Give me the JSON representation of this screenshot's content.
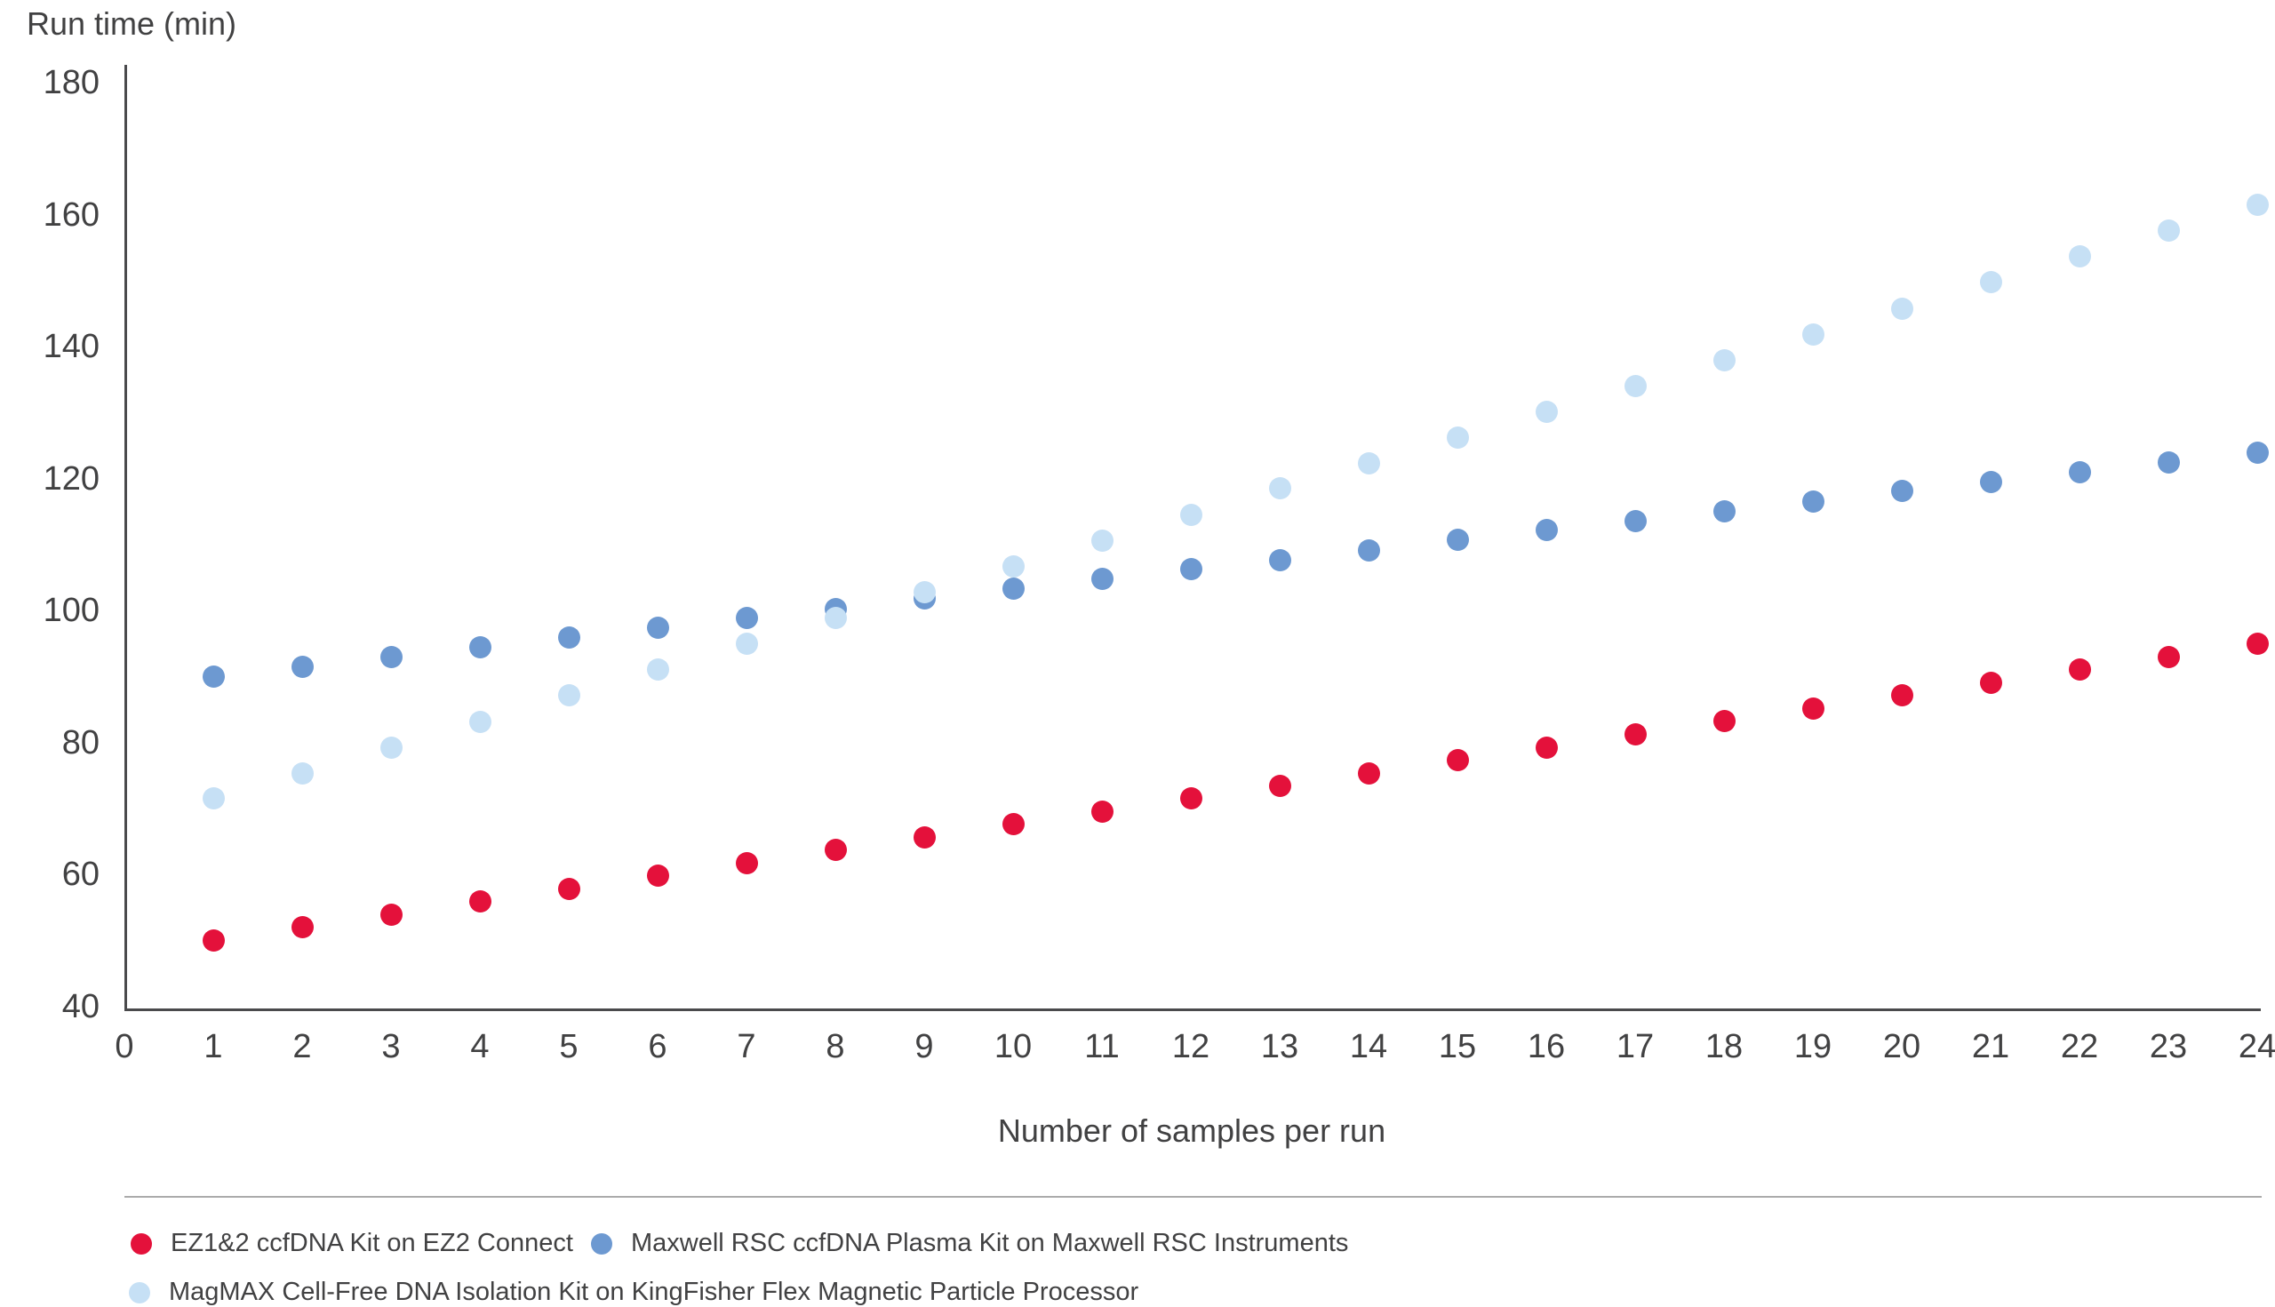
{
  "chart_data": {
    "type": "scatter",
    "title": "",
    "ylabel": "Run time (min)",
    "xlabel": "Number of samples per run",
    "x": [
      1,
      2,
      3,
      4,
      5,
      6,
      7,
      8,
      9,
      10,
      11,
      12,
      13,
      14,
      15,
      16,
      17,
      18,
      19,
      20,
      21,
      22,
      23,
      24
    ],
    "series": [
      {
        "name": "EZ1&2 ccfDNA Kit on EZ2 Connect",
        "color": "#e4113b",
        "values": [
          50.0,
          52.0,
          53.9,
          55.9,
          57.8,
          59.8,
          61.7,
          63.7,
          65.7,
          67.6,
          69.6,
          71.5,
          73.5,
          75.4,
          77.4,
          79.3,
          81.3,
          83.3,
          85.2,
          87.2,
          89.1,
          91.1,
          93.0,
          95.0
        ]
      },
      {
        "name": "Maxwell RSC ccfDNA Plasma Kit on Maxwell RSC Instruments",
        "color": "#6d99d1",
        "values": [
          90.0,
          91.5,
          93.0,
          94.4,
          95.9,
          97.4,
          98.9,
          100.3,
          101.8,
          103.3,
          104.8,
          106.3,
          107.7,
          109.2,
          110.7,
          112.2,
          113.6,
          115.1,
          116.6,
          118.1,
          119.5,
          121.0,
          122.5,
          124.0
        ]
      },
      {
        "name": "MagMAX Cell-Free DNA Isolation Kit on KingFisher Flex Magnetic Particle Processor",
        "color": "#c6e0f5",
        "values": [
          71.5,
          75.4,
          79.3,
          83.2,
          87.2,
          91.1,
          95.0,
          98.9,
          102.8,
          106.7,
          110.6,
          114.5,
          118.5,
          122.4,
          126.3,
          130.2,
          134.1,
          138.0,
          141.9,
          145.8,
          149.8,
          153.7,
          157.6,
          161.5
        ]
      }
    ],
    "y_ticks": [
      40,
      60,
      80,
      100,
      120,
      140,
      160,
      180
    ],
    "x_ticks": [
      0,
      1,
      2,
      3,
      4,
      5,
      6,
      7,
      8,
      9,
      10,
      11,
      12,
      13,
      14,
      15,
      16,
      17,
      18,
      19,
      20,
      21,
      22,
      23,
      24
    ],
    "ylim": [
      40,
      183
    ],
    "xlim": [
      0,
      24
    ],
    "grid": false,
    "legend_position": "bottom"
  },
  "colors": {
    "axis": "#4a4a4c",
    "text": "#414142",
    "separator": "#ababab",
    "background": "#ffffff"
  }
}
